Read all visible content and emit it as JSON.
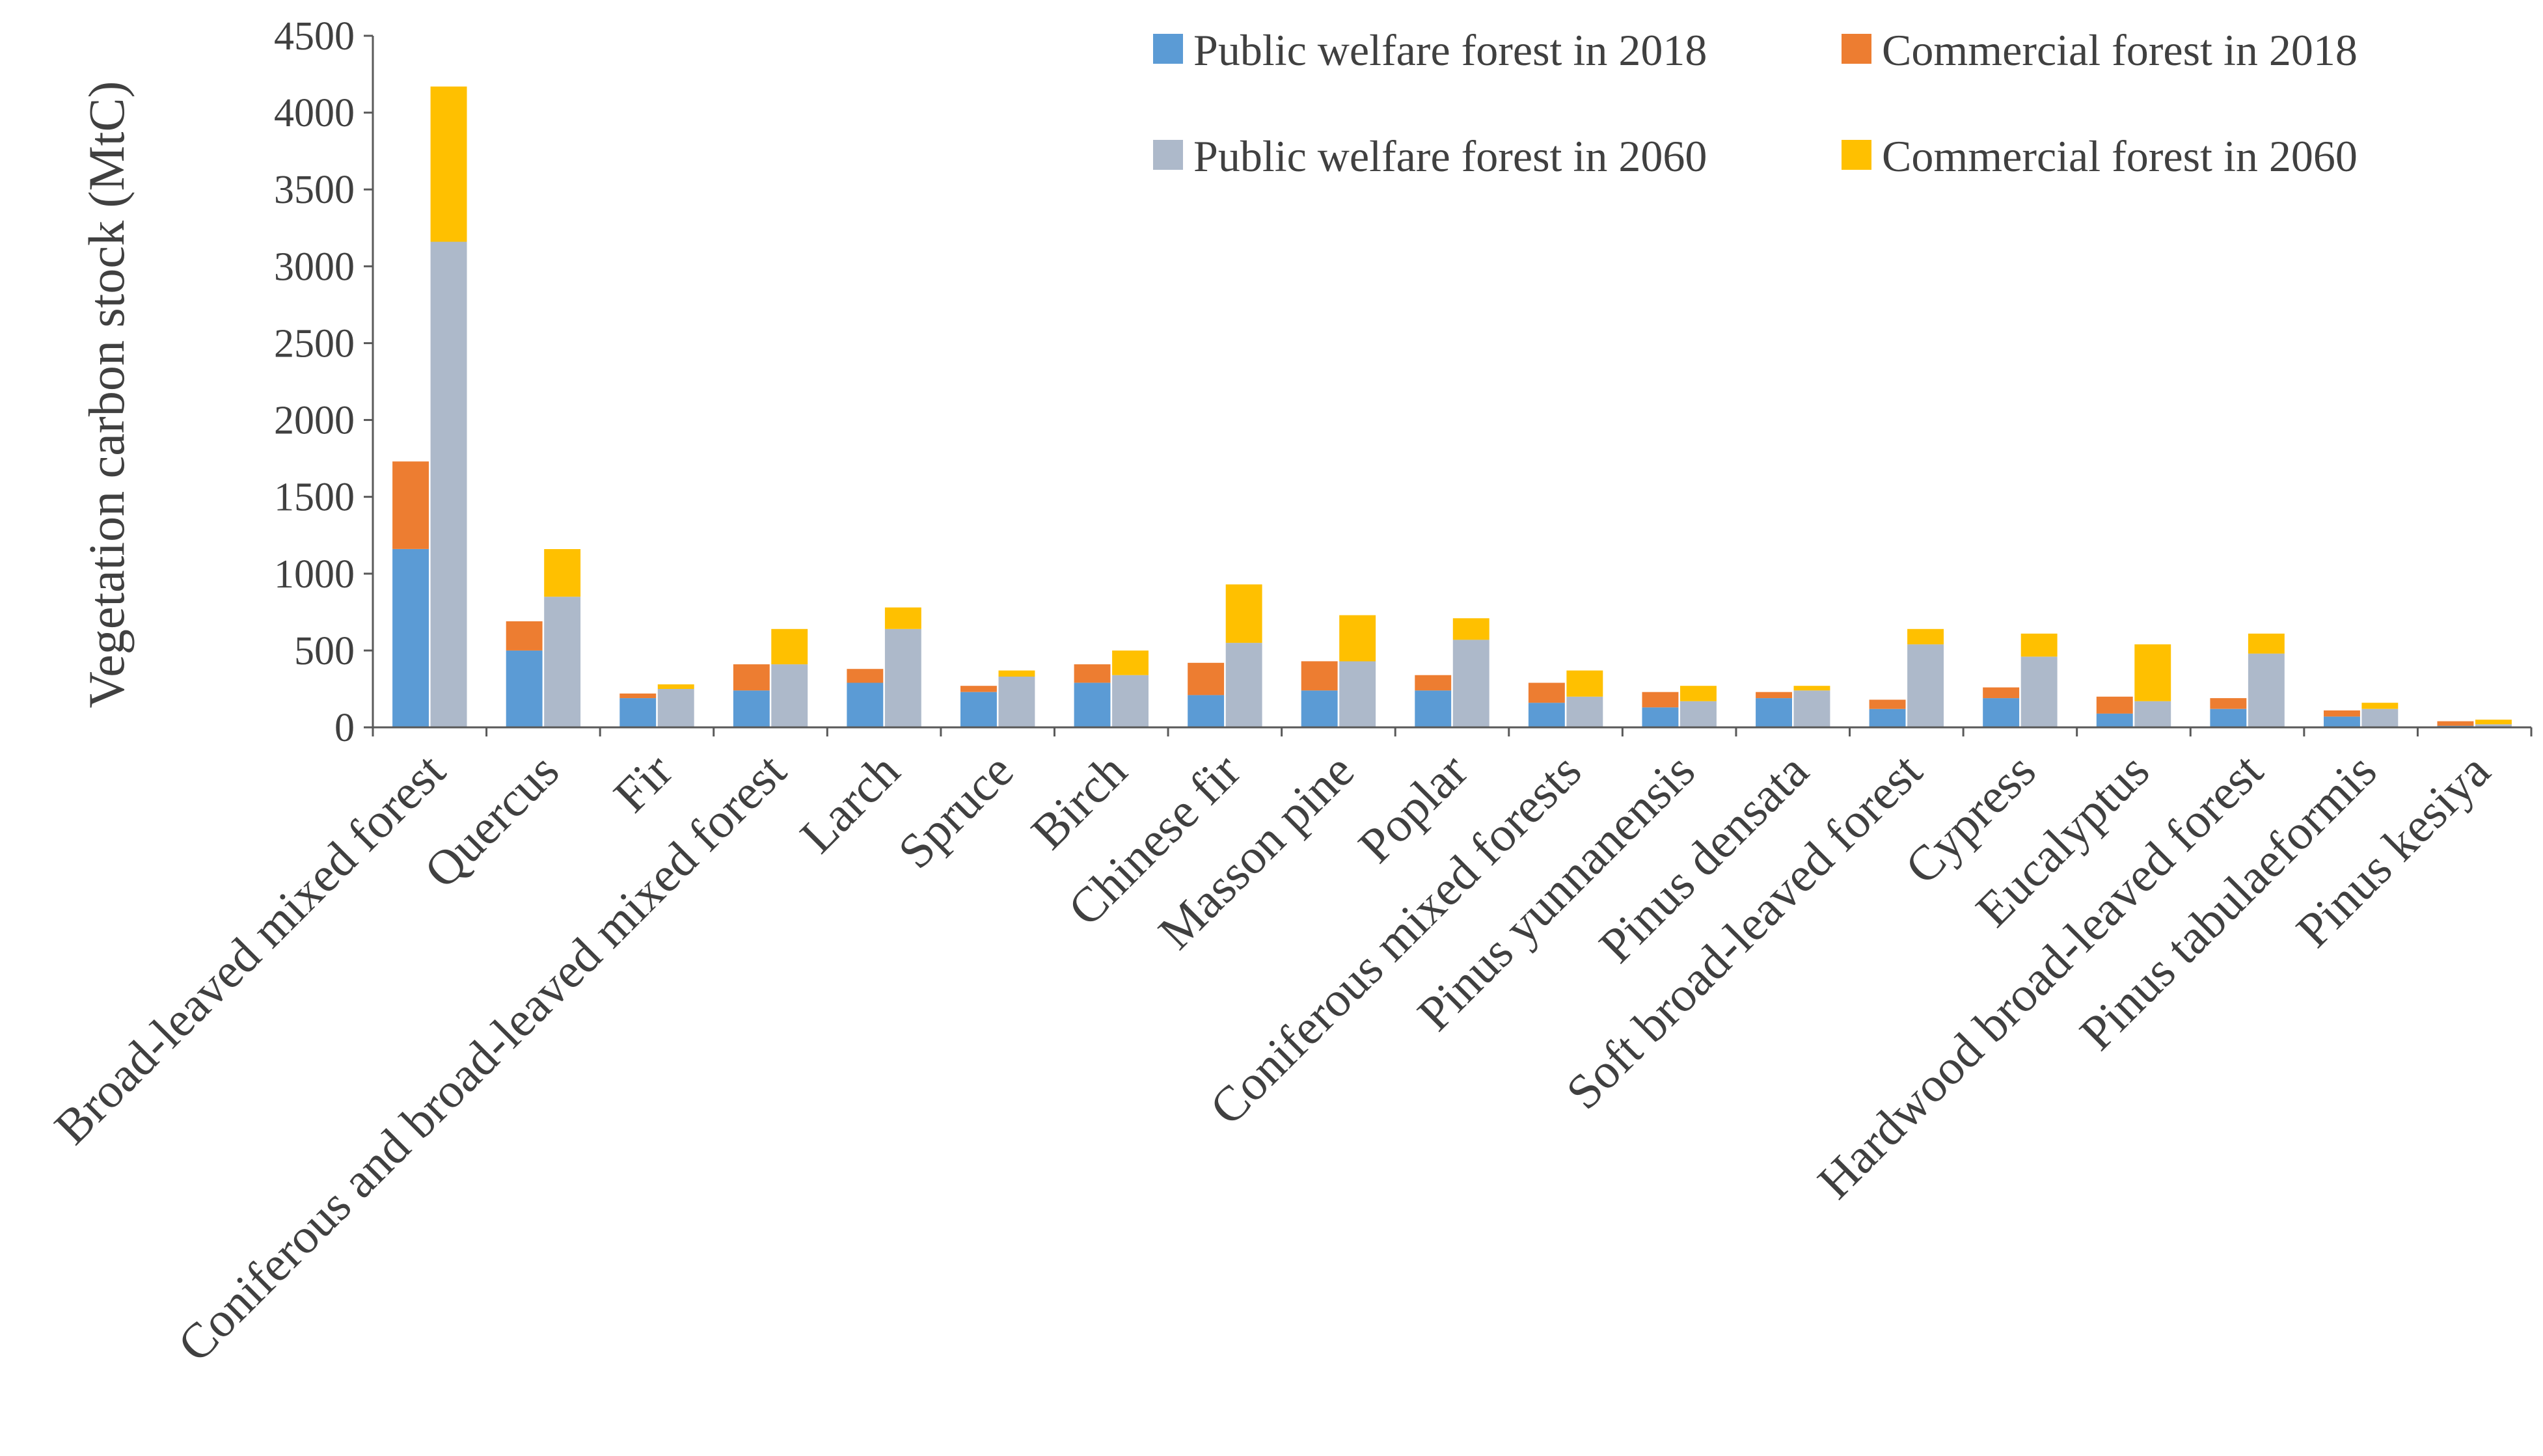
{
  "chart_data": {
    "type": "bar",
    "stacked": true,
    "title": "",
    "xlabel": "",
    "ylabel": "Vegetation carbon stock (MtC)",
    "ylim": [
      0,
      4500
    ],
    "yticks": [
      0,
      500,
      1000,
      1500,
      2000,
      2500,
      3000,
      3500,
      4000,
      4500
    ],
    "grid": false,
    "legend_position": "top-right",
    "categories": [
      "Broad-leaved mixed forest",
      "Quercus",
      "Fir",
      "Coniferous and broad-leaved mixed forest",
      "Larch",
      "Spruce",
      "Birch",
      "Chinese fir",
      "Masson pine",
      "Poplar",
      "Coniferous mixed forests",
      "Pinus yunnanensis",
      "Pinus densata",
      "Soft broad-leaved forest",
      "Cypress",
      "Eucalyptus",
      "Hardwood broad-leaved forest",
      "Pinus tabulaeformis",
      "Pinus kesiya"
    ],
    "series": [
      {
        "name": "Public welfare forest in 2018",
        "stack": "2018",
        "color": "#5B9BD5",
        "values": [
          1160,
          500,
          190,
          240,
          290,
          230,
          290,
          210,
          240,
          240,
          160,
          130,
          190,
          120,
          190,
          90,
          120,
          70,
          10
        ]
      },
      {
        "name": "Commercial forest in 2018",
        "stack": "2018",
        "color": "#ED7D31",
        "values": [
          570,
          190,
          30,
          170,
          90,
          40,
          120,
          210,
          190,
          100,
          130,
          100,
          40,
          60,
          70,
          110,
          70,
          40,
          30
        ]
      },
      {
        "name": "Public welfare forest in 2060",
        "stack": "2060",
        "color": "#ADB9CA",
        "values": [
          3160,
          850,
          250,
          410,
          640,
          330,
          340,
          550,
          430,
          570,
          200,
          170,
          240,
          540,
          460,
          170,
          480,
          120,
          20
        ]
      },
      {
        "name": "Commercial forest in 2060",
        "stack": "2060",
        "color": "#FFC000",
        "values": [
          1010,
          310,
          30,
          230,
          140,
          40,
          160,
          380,
          300,
          140,
          170,
          100,
          30,
          100,
          150,
          370,
          130,
          40,
          30
        ]
      }
    ]
  }
}
